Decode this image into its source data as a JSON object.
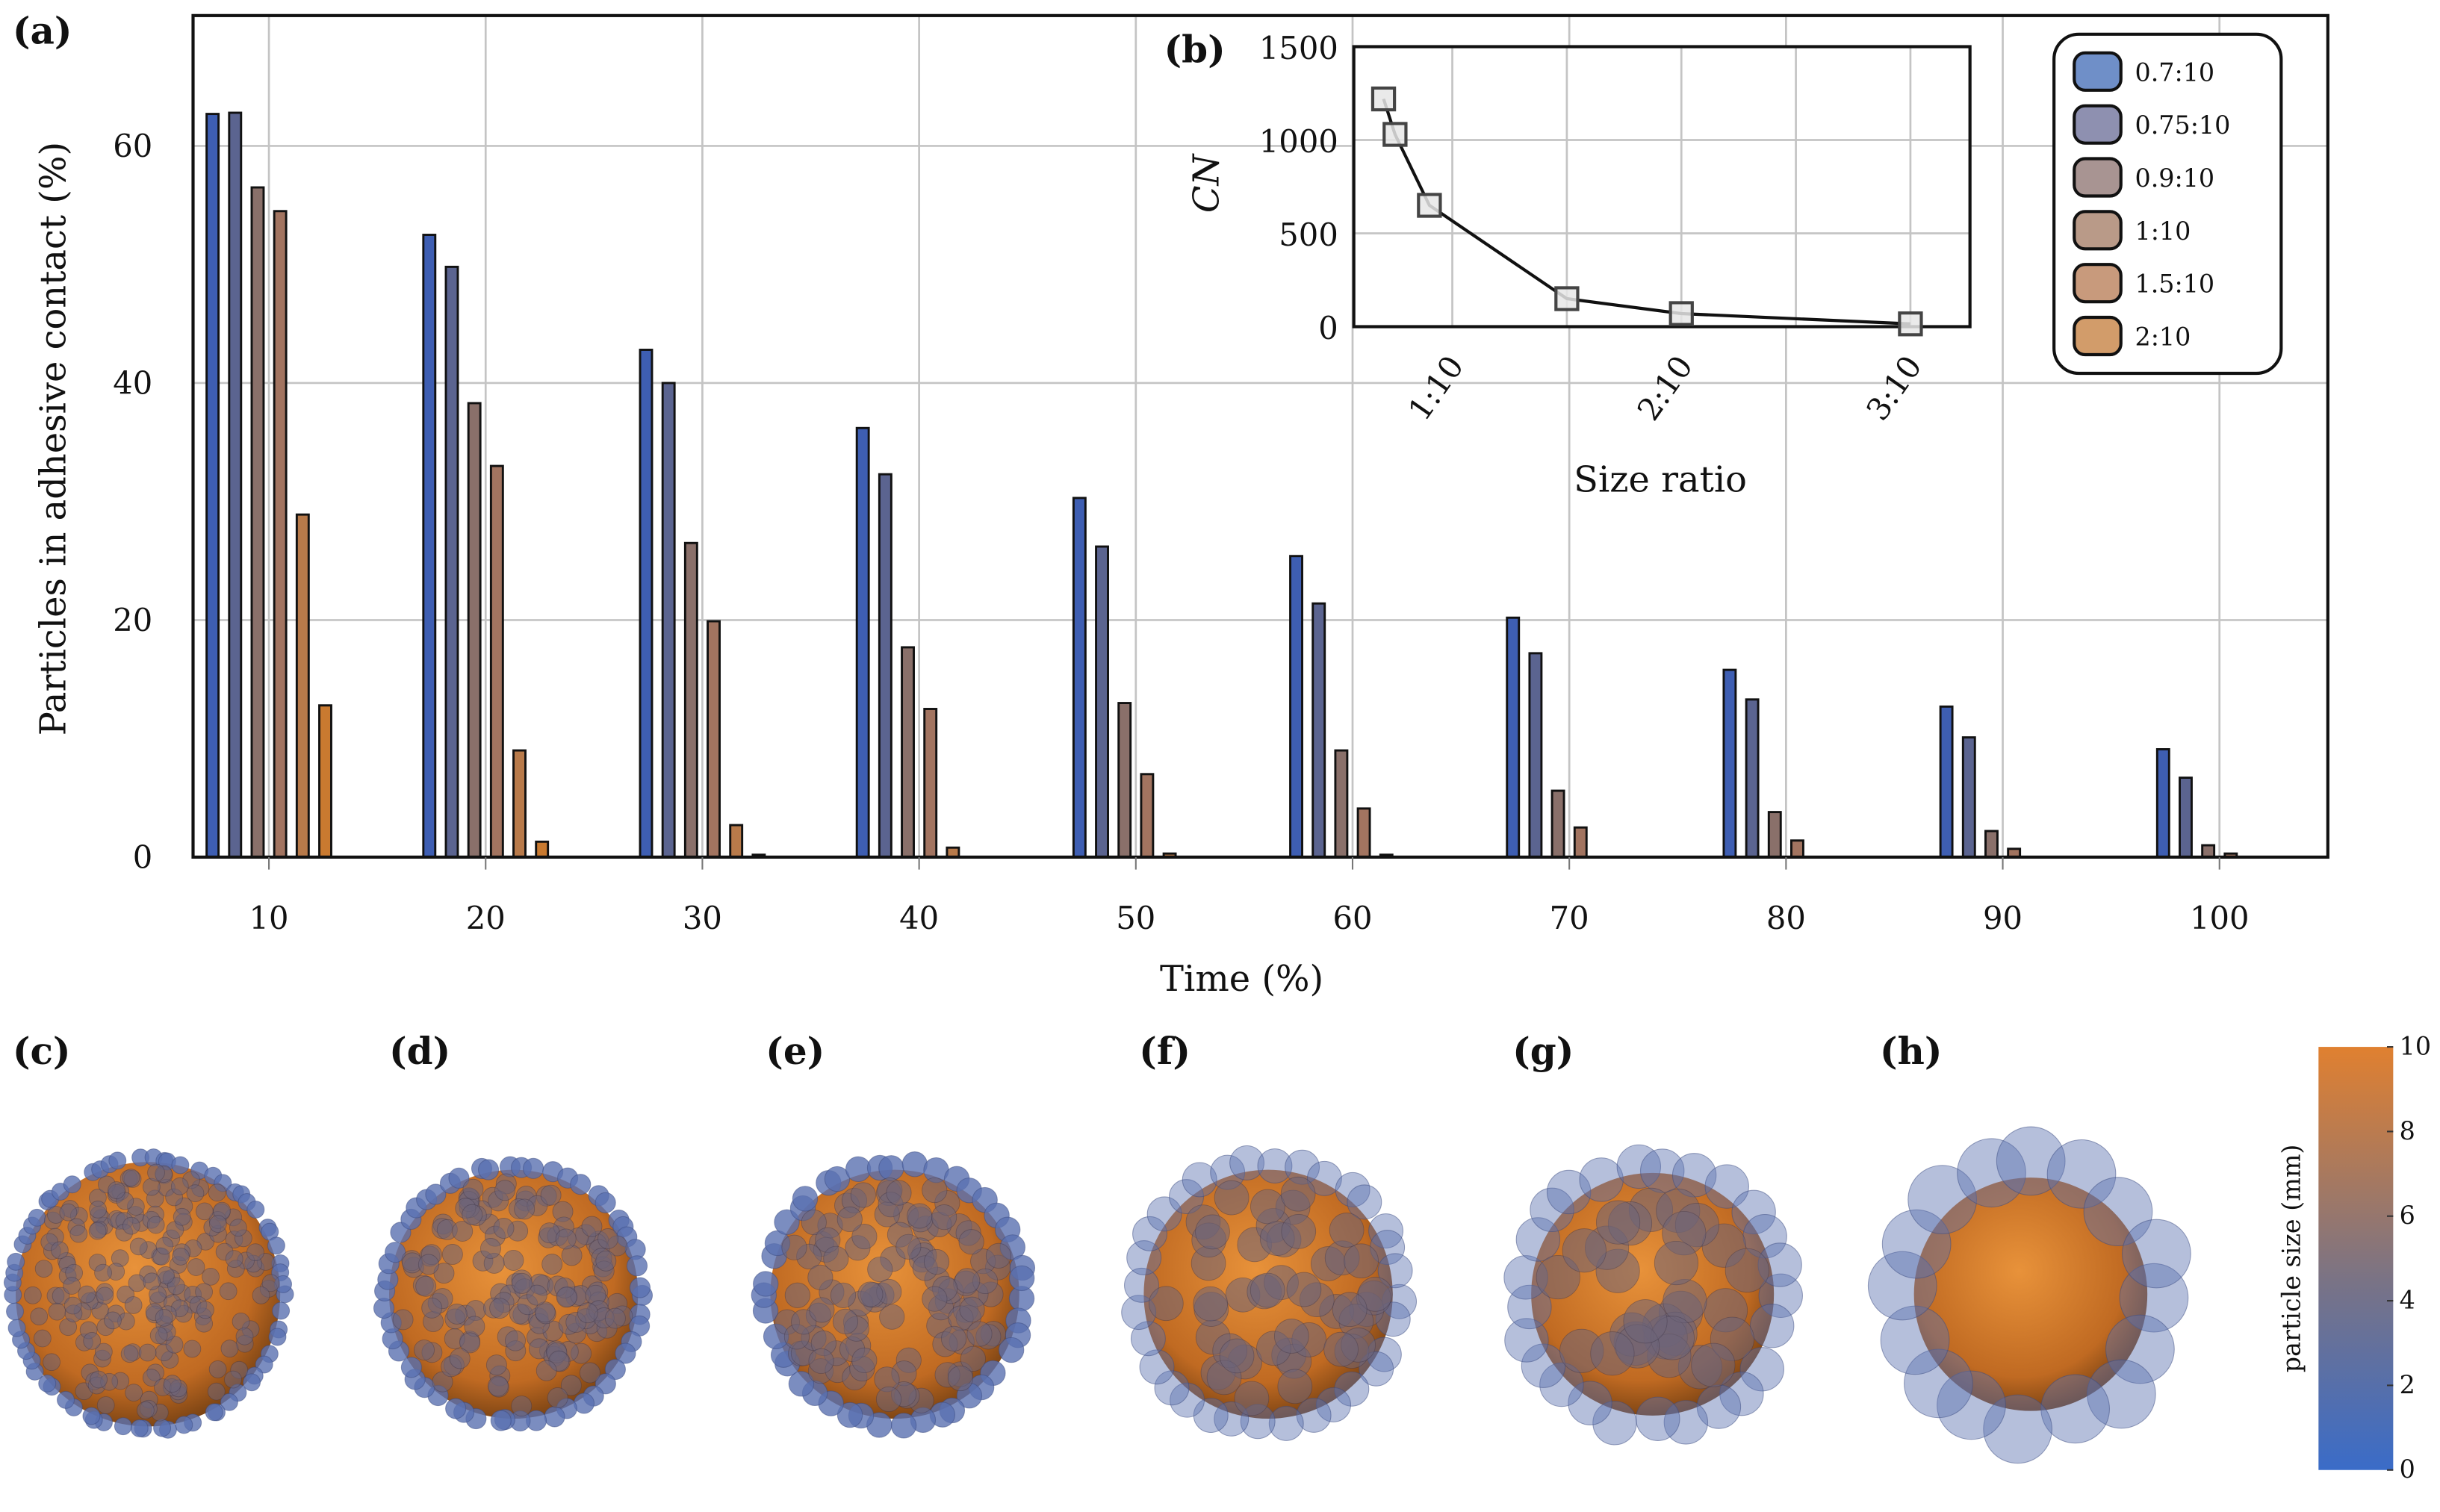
{
  "chart_data": [
    {
      "type": "bar",
      "panel_label": "(a)",
      "xlabel": "Time (%)",
      "ylabel": "Particles in adhesive contact (%)",
      "categories": [
        10,
        20,
        30,
        40,
        50,
        60,
        70,
        80,
        90,
        100
      ],
      "xlim": [
        6.5,
        105
      ],
      "ylim": [
        0,
        71
      ],
      "yticks": [
        0,
        20,
        40,
        60
      ],
      "grid": true,
      "legend_position": "top-right",
      "series": [
        {
          "name": "0.7:10",
          "color": "#3e5eb2",
          "legend_color": "#6f8fc8",
          "values": [
            62.7,
            52.5,
            42.8,
            36.2,
            30.3,
            25.4,
            20.2,
            15.8,
            12.7,
            9.1
          ]
        },
        {
          "name": "0.75:10",
          "color": "#5b6490",
          "legend_color": "#8e90b0",
          "values": [
            62.8,
            49.8,
            40.0,
            32.3,
            26.2,
            21.4,
            17.2,
            13.3,
            10.1,
            6.7
          ]
        },
        {
          "name": "0.9:10",
          "color": "#8a706a",
          "legend_color": "#a89492",
          "values": [
            56.5,
            38.3,
            26.5,
            17.7,
            13.0,
            9.0,
            5.6,
            3.8,
            2.2,
            1.0
          ]
        },
        {
          "name": "1:10",
          "color": "#a27460",
          "legend_color": "#b99a88",
          "values": [
            54.5,
            33.0,
            19.9,
            12.5,
            7.0,
            4.1,
            2.5,
            1.4,
            0.7,
            0.3
          ]
        },
        {
          "name": "1.5:10",
          "color": "#b87a4a",
          "legend_color": "#c89a7c",
          "values": [
            28.9,
            9.0,
            2.7,
            0.8,
            0.3,
            0.2,
            0,
            0,
            0,
            0
          ]
        },
        {
          "name": "2:10",
          "color": "#c97a30",
          "legend_color": "#d29c6a",
          "values": [
            12.8,
            1.3,
            0.2,
            0,
            0,
            0,
            0,
            0,
            0,
            0
          ]
        }
      ]
    },
    {
      "type": "line",
      "panel_label": "(b)",
      "xlabel": "Size ratio",
      "ylabel": "CN",
      "x": [
        0.7,
        0.75,
        0.9,
        1.5,
        2.0,
        3.0
      ],
      "y": [
        1220,
        1030,
        650,
        150,
        70,
        15
      ],
      "xlim": [
        0.57,
        3.26
      ],
      "ylim": [
        0,
        1500
      ],
      "xticks": [
        1,
        2,
        3
      ],
      "xtick_labels": [
        "1:10",
        "2:10",
        "3:10"
      ],
      "yticks": [
        0,
        500,
        1000,
        1500
      ],
      "grid": true
    }
  ],
  "snapshots": {
    "labels": [
      "(c)",
      "(d)",
      "(e)",
      "(f)",
      "(g)",
      "(h)"
    ],
    "colorbar": {
      "label": "particle size (mm)",
      "ticks": [
        "0",
        "2",
        "4",
        "6",
        "8",
        "10"
      ],
      "range": [
        0,
        10
      ],
      "colors": [
        "#3a6cc8",
        "#7a7385",
        "#e08030"
      ]
    }
  }
}
